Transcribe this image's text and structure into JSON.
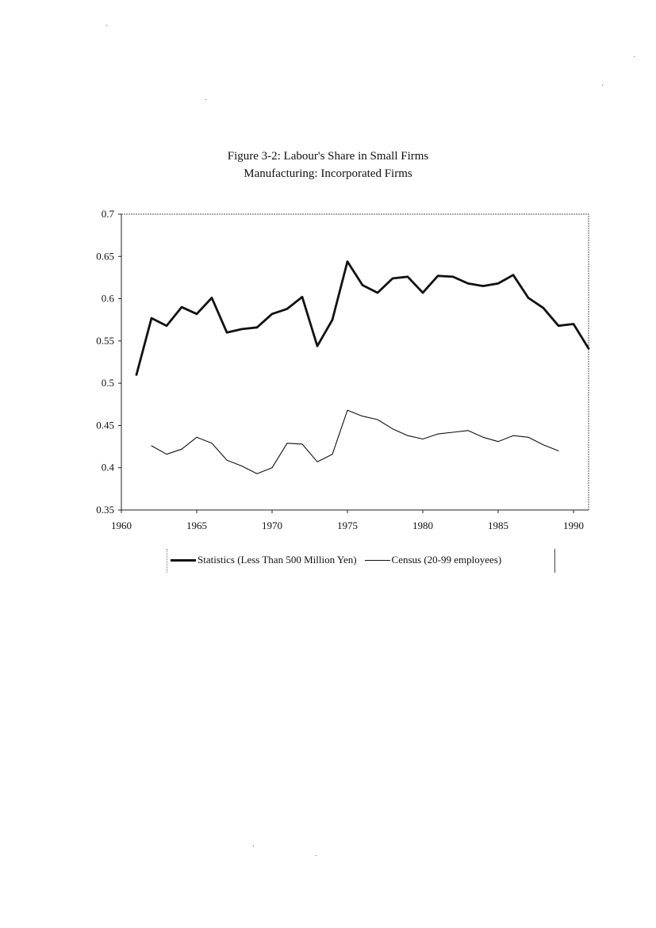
{
  "chart_data": {
    "type": "line",
    "title": "Figure 3-2: Labour's Share in Small Firms",
    "subtitle": "Manufacturing: Incorporated Firms",
    "xlabel": "",
    "ylabel": "",
    "xlim": [
      1960,
      1991
    ],
    "ylim": [
      0.35,
      0.7
    ],
    "x_ticks": [
      "1960",
      "1965",
      "1970",
      "1975",
      "1980",
      "1985",
      "1990"
    ],
    "y_ticks": [
      "0.7",
      "0.65",
      "0.6",
      "0.55",
      "0.5",
      "0.45",
      "0.4",
      "0.35"
    ],
    "grid": false,
    "legend_position": "bottom",
    "series": [
      {
        "name": "Statistics (Less Than 500 Million Yen)",
        "style": "thick",
        "x": [
          1961,
          1962,
          1963,
          1964,
          1965,
          1966,
          1967,
          1968,
          1969,
          1970,
          1971,
          1972,
          1973,
          1974,
          1975,
          1976,
          1977,
          1978,
          1979,
          1980,
          1981,
          1982,
          1983,
          1984,
          1985,
          1986,
          1987,
          1988,
          1989,
          1990,
          1991
        ],
        "values": [
          0.51,
          0.577,
          0.568,
          0.59,
          0.582,
          0.601,
          0.56,
          0.564,
          0.566,
          0.582,
          0.588,
          0.602,
          0.544,
          0.575,
          0.644,
          0.616,
          0.607,
          0.624,
          0.626,
          0.607,
          0.627,
          0.626,
          0.618,
          0.615,
          0.618,
          0.628,
          0.601,
          0.589,
          0.568,
          0.57,
          0.541
        ]
      },
      {
        "name": "Census (20-99 employees)",
        "style": "thin",
        "x": [
          1962,
          1963,
          1964,
          1965,
          1966,
          1967,
          1968,
          1969,
          1970,
          1971,
          1972,
          1973,
          1974,
          1975,
          1976,
          1977,
          1978,
          1979,
          1980,
          1981,
          1982,
          1983,
          1984,
          1985,
          1986,
          1987,
          1988,
          1989
        ],
        "values": [
          0.426,
          0.416,
          0.422,
          0.436,
          0.429,
          0.409,
          0.402,
          0.393,
          0.4,
          0.429,
          0.428,
          0.407,
          0.416,
          0.468,
          0.461,
          0.457,
          0.446,
          0.438,
          0.434,
          0.44,
          0.442,
          0.444,
          0.436,
          0.431,
          0.438,
          0.436,
          0.427,
          0.42
        ]
      }
    ]
  }
}
